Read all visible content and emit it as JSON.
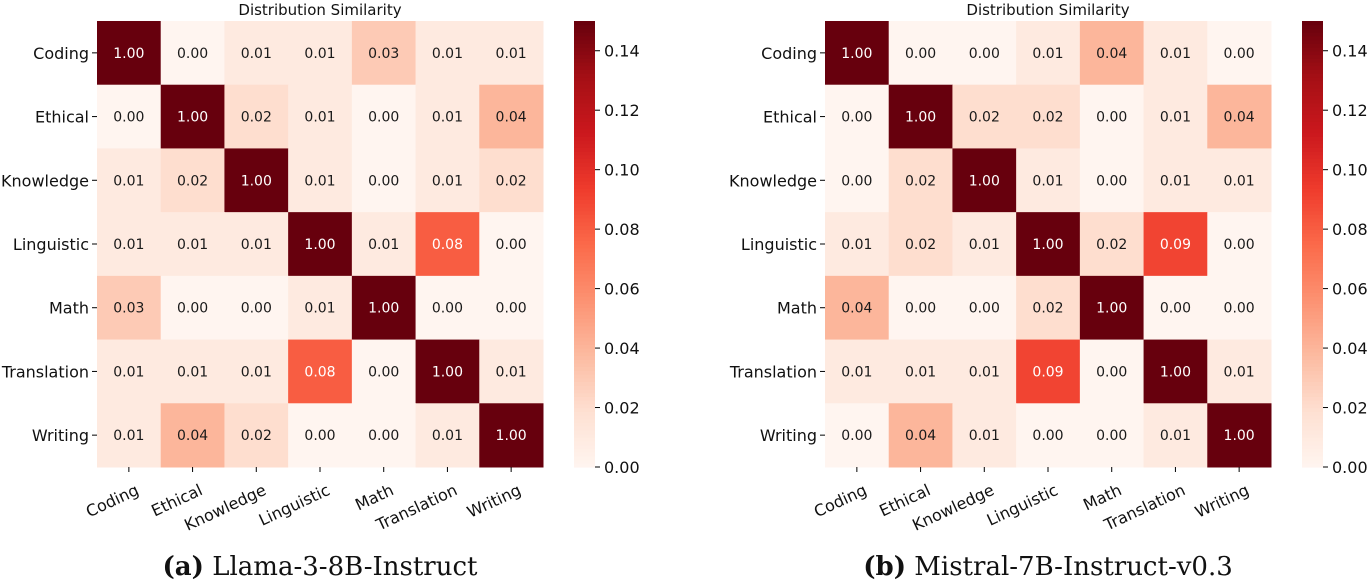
{
  "chart_data": [
    {
      "type": "heatmap",
      "title": "Distribution Similarity",
      "rows": [
        "Coding",
        "Ethical",
        "Knowledge",
        "Linguistic",
        "Math",
        "Translation",
        "Writing"
      ],
      "cols": [
        "Coding",
        "Ethical",
        "Knowledge",
        "Linguistic",
        "Math",
        "Translation",
        "Writing"
      ],
      "values": [
        [
          1.0,
          0.0,
          0.01,
          0.01,
          0.03,
          0.01,
          0.01
        ],
        [
          0.0,
          1.0,
          0.02,
          0.01,
          0.0,
          0.01,
          0.04
        ],
        [
          0.01,
          0.02,
          1.0,
          0.01,
          0.0,
          0.01,
          0.02
        ],
        [
          0.01,
          0.01,
          0.01,
          1.0,
          0.01,
          0.08,
          0.0
        ],
        [
          0.03,
          0.0,
          0.0,
          0.01,
          1.0,
          0.0,
          0.0
        ],
        [
          0.01,
          0.01,
          0.01,
          0.08,
          0.0,
          1.0,
          0.01
        ],
        [
          0.01,
          0.04,
          0.02,
          0.0,
          0.0,
          0.01,
          1.0
        ]
      ],
      "colorbar": {
        "min": 0.0,
        "max": 0.15,
        "ticks": [
          "0.00",
          "0.02",
          "0.04",
          "0.06",
          "0.08",
          "0.10",
          "0.12",
          "0.14"
        ],
        "colormap": "Reds"
      },
      "caption_label": "(a)",
      "caption_text": "Llama-3-8B-Instruct"
    },
    {
      "type": "heatmap",
      "title": "Distribution Similarity",
      "rows": [
        "Coding",
        "Ethical",
        "Knowledge",
        "Linguistic",
        "Math",
        "Translation",
        "Writing"
      ],
      "cols": [
        "Coding",
        "Ethical",
        "Knowledge",
        "Linguistic",
        "Math",
        "Translation",
        "Writing"
      ],
      "values": [
        [
          1.0,
          0.0,
          0.0,
          0.01,
          0.04,
          0.01,
          0.0
        ],
        [
          0.0,
          1.0,
          0.02,
          0.02,
          0.0,
          0.01,
          0.04
        ],
        [
          0.0,
          0.02,
          1.0,
          0.01,
          0.0,
          0.01,
          0.01
        ],
        [
          0.01,
          0.02,
          0.01,
          1.0,
          0.02,
          0.09,
          0.0
        ],
        [
          0.04,
          0.0,
          0.0,
          0.02,
          1.0,
          0.0,
          0.0
        ],
        [
          0.01,
          0.01,
          0.01,
          0.09,
          0.0,
          1.0,
          0.01
        ],
        [
          0.0,
          0.04,
          0.01,
          0.0,
          0.0,
          0.01,
          1.0
        ]
      ],
      "colorbar": {
        "min": 0.0,
        "max": 0.15,
        "ticks": [
          "0.00",
          "0.02",
          "0.04",
          "0.06",
          "0.08",
          "0.10",
          "0.12",
          "0.14"
        ],
        "colormap": "Reds"
      },
      "caption_label": "(b)",
      "caption_text": "Mistral-7B-Instruct-v0.3"
    }
  ]
}
